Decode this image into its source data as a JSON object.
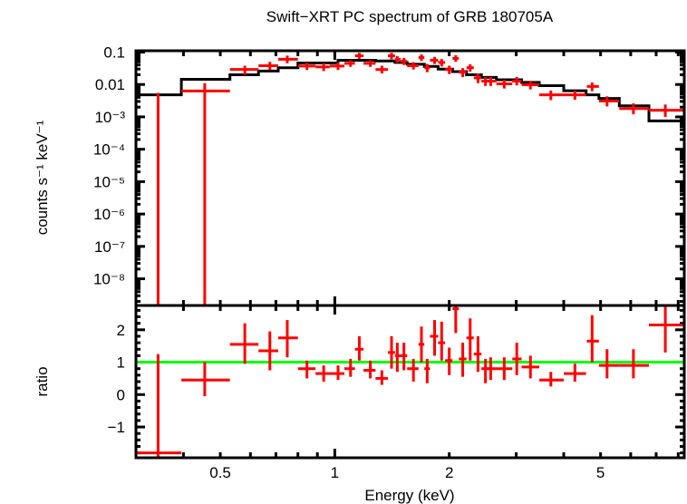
{
  "chart_data": [
    {
      "type": "scatter",
      "panel": "spectrum",
      "title": "Swift−XRT PC spectrum of GRB 180705A",
      "xlabel": "Energy (keV)",
      "ylabel": "counts s⁻¹ keV⁻¹",
      "xscale": "log",
      "yscale": "log",
      "xlim": [
        0.3,
        8.3
      ],
      "ylim": [
        1.5e-09,
        0.11
      ],
      "yticks": [
        {
          "value": 0.1,
          "label": "0.1"
        },
        {
          "value": 0.01,
          "label": "0.01"
        },
        {
          "value": 0.001,
          "label": "10⁻³"
        },
        {
          "value": 0.0001,
          "label": "10⁻⁴"
        },
        {
          "value": 1e-05,
          "label": "10⁻⁵"
        },
        {
          "value": 1e-06,
          "label": "10⁻⁶"
        },
        {
          "value": 1e-07,
          "label": "10⁻⁷"
        },
        {
          "value": 1e-08,
          "label": "10⁻⁸"
        }
      ],
      "series": [
        {
          "name": "data",
          "color": "#ff0000",
          "points": [
            {
              "x": 0.343,
              "xlo": 0.3,
              "xhi": 0.395,
              "y": 1e-09,
              "ylo": 1e-09,
              "yhi": 0.0055
            },
            {
              "x": 0.455,
              "xlo": 0.395,
              "xhi": 0.53,
              "y": 0.0063,
              "ylo": 1e-09,
              "yhi": 0.011
            },
            {
              "x": 0.58,
              "xlo": 0.53,
              "xhi": 0.63,
              "y": 0.029,
              "ylo": 0.02,
              "yhi": 0.038
            },
            {
              "x": 0.675,
              "xlo": 0.63,
              "xhi": 0.71,
              "y": 0.038,
              "ylo": 0.028,
              "yhi": 0.05
            },
            {
              "x": 0.75,
              "xlo": 0.71,
              "xhi": 0.8,
              "y": 0.06,
              "ylo": 0.045,
              "yhi": 0.078
            },
            {
              "x": 0.845,
              "xlo": 0.8,
              "xhi": 0.89,
              "y": 0.037,
              "ylo": 0.028,
              "yhi": 0.047
            },
            {
              "x": 0.935,
              "xlo": 0.89,
              "xhi": 0.97,
              "y": 0.035,
              "ylo": 0.026,
              "yhi": 0.045
            },
            {
              "x": 1.02,
              "xlo": 0.97,
              "xhi": 1.06,
              "y": 0.037,
              "ylo": 0.028,
              "yhi": 0.047
            },
            {
              "x": 1.1,
              "xlo": 1.06,
              "xhi": 1.13,
              "y": 0.045,
              "ylo": 0.035,
              "yhi": 0.056
            },
            {
              "x": 1.16,
              "xlo": 1.13,
              "xhi": 1.19,
              "y": 0.077,
              "ylo": 0.062,
              "yhi": 0.095
            },
            {
              "x": 1.24,
              "xlo": 1.19,
              "xhi": 1.28,
              "y": 0.045,
              "ylo": 0.035,
              "yhi": 0.056
            },
            {
              "x": 1.33,
              "xlo": 1.28,
              "xhi": 1.38,
              "y": 0.029,
              "ylo": 0.022,
              "yhi": 0.038
            },
            {
              "x": 1.41,
              "xlo": 1.38,
              "xhi": 1.44,
              "y": 0.077,
              "ylo": 0.06,
              "yhi": 0.095
            },
            {
              "x": 1.46,
              "xlo": 1.44,
              "xhi": 1.49,
              "y": 0.06,
              "ylo": 0.047,
              "yhi": 0.075
            },
            {
              "x": 1.52,
              "xlo": 1.49,
              "xhi": 1.55,
              "y": 0.052,
              "ylo": 0.04,
              "yhi": 0.066
            },
            {
              "x": 1.61,
              "xlo": 1.55,
              "xhi": 1.66,
              "y": 0.038,
              "ylo": 0.029,
              "yhi": 0.049
            },
            {
              "x": 1.69,
              "xlo": 1.66,
              "xhi": 1.72,
              "y": 0.068,
              "ylo": 0.053,
              "yhi": 0.085
            },
            {
              "x": 1.75,
              "xlo": 1.72,
              "xhi": 1.78,
              "y": 0.033,
              "ylo": 0.024,
              "yhi": 0.043
            },
            {
              "x": 1.83,
              "xlo": 1.78,
              "xhi": 1.87,
              "y": 0.056,
              "ylo": 0.043,
              "yhi": 0.071
            },
            {
              "x": 1.91,
              "xlo": 1.87,
              "xhi": 1.95,
              "y": 0.048,
              "ylo": 0.036,
              "yhi": 0.061
            },
            {
              "x": 2.0,
              "xlo": 1.95,
              "xhi": 2.04,
              "y": 0.029,
              "ylo": 0.021,
              "yhi": 0.038
            },
            {
              "x": 2.08,
              "xlo": 2.04,
              "xhi": 2.12,
              "y": 0.064,
              "ylo": 0.05,
              "yhi": 0.08
            },
            {
              "x": 2.17,
              "xlo": 2.12,
              "xhi": 2.22,
              "y": 0.024,
              "ylo": 0.017,
              "yhi": 0.032
            },
            {
              "x": 2.27,
              "xlo": 2.22,
              "xhi": 2.32,
              "y": 0.033,
              "ylo": 0.025,
              "yhi": 0.042
            },
            {
              "x": 2.38,
              "xlo": 2.32,
              "xhi": 2.43,
              "y": 0.016,
              "ylo": 0.011,
              "yhi": 0.022
            },
            {
              "x": 2.49,
              "xlo": 2.43,
              "xhi": 2.56,
              "y": 0.0127,
              "ylo": 0.009,
              "yhi": 0.017
            },
            {
              "x": 2.57,
              "xlo": 2.5,
              "xhi": 2.66,
              "y": 0.0127,
              "ylo": 0.009,
              "yhi": 0.017
            },
            {
              "x": 2.79,
              "xlo": 2.66,
              "xhi": 2.93,
              "y": 0.0105,
              "ylo": 0.0075,
              "yhi": 0.014
            },
            {
              "x": 3.01,
              "xlo": 2.93,
              "xhi": 3.1,
              "y": 0.0127,
              "ylo": 0.0093,
              "yhi": 0.017
            },
            {
              "x": 3.27,
              "xlo": 3.1,
              "xhi": 3.45,
              "y": 0.0098,
              "ylo": 0.0071,
              "yhi": 0.013
            },
            {
              "x": 3.7,
              "xlo": 3.45,
              "xhi": 4.0,
              "y": 0.0048,
              "ylo": 0.0033,
              "yhi": 0.0065
            },
            {
              "x": 4.28,
              "xlo": 4.0,
              "xhi": 4.58,
              "y": 0.0048,
              "ylo": 0.0034,
              "yhi": 0.0064
            },
            {
              "x": 4.75,
              "xlo": 4.6,
              "xhi": 4.95,
              "y": 0.0087,
              "ylo": 0.0062,
              "yhi": 0.0115
            },
            {
              "x": 5.2,
              "xlo": 4.95,
              "xhi": 5.6,
              "y": 0.0031,
              "ylo": 0.0021,
              "yhi": 0.0043
            },
            {
              "x": 6.1,
              "xlo": 5.6,
              "xhi": 6.7,
              "y": 0.0018,
              "ylo": 0.0012,
              "yhi": 0.0026
            },
            {
              "x": 7.4,
              "xlo": 6.7,
              "xhi": 8.3,
              "y": 0.0016,
              "ylo": 0.001,
              "yhi": 0.0024
            }
          ]
        },
        {
          "name": "model",
          "color": "#000000",
          "steps": [
            {
              "xlo": 0.3,
              "xhi": 0.395,
              "y": 0.0048
            },
            {
              "xlo": 0.395,
              "xhi": 0.53,
              "y": 0.0144
            },
            {
              "xlo": 0.53,
              "xhi": 0.63,
              "y": 0.02
            },
            {
              "xlo": 0.63,
              "xhi": 0.71,
              "y": 0.026
            },
            {
              "xlo": 0.71,
              "xhi": 0.8,
              "y": 0.033
            },
            {
              "xlo": 0.8,
              "xhi": 1.02,
              "y": 0.046
            },
            {
              "xlo": 1.02,
              "xhi": 1.28,
              "y": 0.056
            },
            {
              "xlo": 1.28,
              "xhi": 1.44,
              "y": 0.053
            },
            {
              "xlo": 1.44,
              "xhi": 1.55,
              "y": 0.048
            },
            {
              "xlo": 1.55,
              "xhi": 1.72,
              "y": 0.042
            },
            {
              "xlo": 1.72,
              "xhi": 1.87,
              "y": 0.036
            },
            {
              "xlo": 1.87,
              "xhi": 2.04,
              "y": 0.03
            },
            {
              "xlo": 2.04,
              "xhi": 2.22,
              "y": 0.025
            },
            {
              "xlo": 2.22,
              "xhi": 2.43,
              "y": 0.02
            },
            {
              "xlo": 2.43,
              "xhi": 2.66,
              "y": 0.0165
            },
            {
              "xlo": 2.66,
              "xhi": 3.1,
              "y": 0.014
            },
            {
              "xlo": 3.1,
              "xhi": 3.45,
              "y": 0.0116
            },
            {
              "xlo": 3.45,
              "xhi": 4.0,
              "y": 0.0092
            },
            {
              "xlo": 4.0,
              "xhi": 4.58,
              "y": 0.0064
            },
            {
              "xlo": 4.58,
              "xhi": 4.95,
              "y": 0.0048
            },
            {
              "xlo": 4.95,
              "xhi": 5.6,
              "y": 0.0037
            },
            {
              "xlo": 5.6,
              "xhi": 6.7,
              "y": 0.0022
            },
            {
              "xlo": 6.7,
              "xhi": 8.3,
              "y": 0.00075
            }
          ]
        }
      ]
    },
    {
      "type": "scatter",
      "panel": "ratio",
      "xlabel": "Energy (keV)",
      "ylabel": "ratio",
      "xscale": "log",
      "yscale": "linear",
      "xlim": [
        0.3,
        8.3
      ],
      "ylim": [
        -1.95,
        2.75
      ],
      "xticks": [
        {
          "value": 0.5,
          "label": "0.5"
        },
        {
          "value": 1,
          "label": "1"
        },
        {
          "value": 2,
          "label": "2"
        },
        {
          "value": 5,
          "label": "5"
        }
      ],
      "yticks": [
        {
          "value": 2,
          "label": "2"
        },
        {
          "value": 1,
          "label": "1"
        },
        {
          "value": 0,
          "label": "0"
        },
        {
          "value": -1,
          "label": "−1"
        }
      ],
      "reference_line": {
        "y": 1,
        "color": "#00ff00"
      },
      "series": [
        {
          "name": "ratio",
          "color": "#ff0000",
          "points": [
            {
              "x": 0.343,
              "xlo": 0.3,
              "xhi": 0.395,
              "y": -1.8,
              "ylo": -1.95,
              "yhi": 1.25
            },
            {
              "x": 0.455,
              "xlo": 0.395,
              "xhi": 0.53,
              "y": 0.45,
              "ylo": -0.05,
              "yhi": 1.0
            },
            {
              "x": 0.58,
              "xlo": 0.53,
              "xhi": 0.63,
              "y": 1.55,
              "ylo": 0.95,
              "yhi": 2.2
            },
            {
              "x": 0.675,
              "xlo": 0.63,
              "xhi": 0.71,
              "y": 1.35,
              "ylo": 0.75,
              "yhi": 1.95
            },
            {
              "x": 0.75,
              "xlo": 0.71,
              "xhi": 0.8,
              "y": 1.75,
              "ylo": 1.15,
              "yhi": 2.3
            },
            {
              "x": 0.845,
              "xlo": 0.8,
              "xhi": 0.89,
              "y": 0.8,
              "ylo": 0.5,
              "yhi": 1.05
            },
            {
              "x": 0.935,
              "xlo": 0.89,
              "xhi": 0.97,
              "y": 0.65,
              "ylo": 0.4,
              "yhi": 0.9
            },
            {
              "x": 1.02,
              "xlo": 0.97,
              "xhi": 1.06,
              "y": 0.65,
              "ylo": 0.45,
              "yhi": 0.9
            },
            {
              "x": 1.1,
              "xlo": 1.06,
              "xhi": 1.13,
              "y": 0.8,
              "ylo": 0.55,
              "yhi": 1.1
            },
            {
              "x": 1.16,
              "xlo": 1.13,
              "xhi": 1.19,
              "y": 1.4,
              "ylo": 1.05,
              "yhi": 1.8
            },
            {
              "x": 1.24,
              "xlo": 1.19,
              "xhi": 1.28,
              "y": 0.75,
              "ylo": 0.5,
              "yhi": 1.05
            },
            {
              "x": 1.33,
              "xlo": 1.28,
              "xhi": 1.38,
              "y": 0.5,
              "ylo": 0.3,
              "yhi": 0.75
            },
            {
              "x": 1.41,
              "xlo": 1.38,
              "xhi": 1.44,
              "y": 1.3,
              "ylo": 0.8,
              "yhi": 1.8
            },
            {
              "x": 1.46,
              "xlo": 1.44,
              "xhi": 1.49,
              "y": 1.2,
              "ylo": 0.7,
              "yhi": 1.6
            },
            {
              "x": 1.52,
              "xlo": 1.49,
              "xhi": 1.55,
              "y": 1.2,
              "ylo": 0.75,
              "yhi": 1.6
            },
            {
              "x": 1.61,
              "xlo": 1.55,
              "xhi": 1.66,
              "y": 0.8,
              "ylo": 0.4,
              "yhi": 1.1
            },
            {
              "x": 1.69,
              "xlo": 1.66,
              "xhi": 1.72,
              "y": 1.55,
              "ylo": 1.0,
              "yhi": 2.1
            },
            {
              "x": 1.75,
              "xlo": 1.72,
              "xhi": 1.78,
              "y": 0.8,
              "ylo": 0.35,
              "yhi": 1.1
            },
            {
              "x": 1.83,
              "xlo": 1.78,
              "xhi": 1.87,
              "y": 1.8,
              "ylo": 1.2,
              "yhi": 2.3
            },
            {
              "x": 1.91,
              "xlo": 1.87,
              "xhi": 1.95,
              "y": 1.6,
              "ylo": 1.05,
              "yhi": 2.25
            },
            {
              "x": 2.0,
              "xlo": 1.95,
              "xhi": 2.04,
              "y": 1.05,
              "ylo": 0.6,
              "yhi": 1.45
            },
            {
              "x": 2.08,
              "xlo": 2.04,
              "xhi": 2.12,
              "y": 2.65,
              "ylo": 1.9,
              "yhi": 2.75
            },
            {
              "x": 2.17,
              "xlo": 2.12,
              "xhi": 2.22,
              "y": 1.1,
              "ylo": 0.55,
              "yhi": 1.6
            },
            {
              "x": 2.27,
              "xlo": 2.22,
              "xhi": 2.32,
              "y": 1.75,
              "ylo": 1.05,
              "yhi": 2.35
            },
            {
              "x": 2.38,
              "xlo": 2.32,
              "xhi": 2.43,
              "y": 1.25,
              "ylo": 0.7,
              "yhi": 1.8
            },
            {
              "x": 2.49,
              "xlo": 2.43,
              "xhi": 2.56,
              "y": 0.8,
              "ylo": 0.35,
              "yhi": 1.1
            },
            {
              "x": 2.57,
              "xlo": 2.5,
              "xhi": 2.66,
              "y": 0.8,
              "ylo": 0.45,
              "yhi": 1.15
            },
            {
              "x": 2.79,
              "xlo": 2.66,
              "xhi": 2.93,
              "y": 0.8,
              "ylo": 0.45,
              "yhi": 1.15
            },
            {
              "x": 3.01,
              "xlo": 2.93,
              "xhi": 3.1,
              "y": 1.1,
              "ylo": 0.6,
              "yhi": 1.6
            },
            {
              "x": 3.27,
              "xlo": 3.1,
              "xhi": 3.45,
              "y": 0.85,
              "ylo": 0.5,
              "yhi": 1.2
            },
            {
              "x": 3.7,
              "xlo": 3.45,
              "xhi": 4.0,
              "y": 0.45,
              "ylo": 0.25,
              "yhi": 0.7
            },
            {
              "x": 4.28,
              "xlo": 4.0,
              "xhi": 4.58,
              "y": 0.65,
              "ylo": 0.4,
              "yhi": 0.95
            },
            {
              "x": 4.75,
              "xlo": 4.6,
              "xhi": 4.95,
              "y": 1.65,
              "ylo": 1.0,
              "yhi": 2.45
            },
            {
              "x": 5.2,
              "xlo": 4.95,
              "xhi": 5.6,
              "y": 0.9,
              "ylo": 0.5,
              "yhi": 1.4
            },
            {
              "x": 6.1,
              "xlo": 5.6,
              "xhi": 6.7,
              "y": 0.9,
              "ylo": 0.5,
              "yhi": 1.4
            },
            {
              "x": 7.4,
              "xlo": 6.7,
              "xhi": 8.3,
              "y": 2.15,
              "ylo": 1.3,
              "yhi": 2.75
            }
          ]
        }
      ]
    }
  ]
}
